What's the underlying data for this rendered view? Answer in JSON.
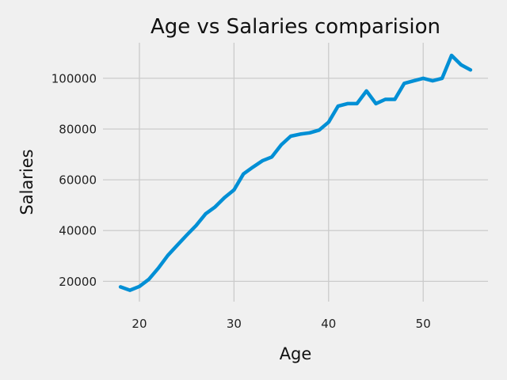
{
  "chart_data": {
    "type": "line",
    "title": "Age vs Salaries comparision",
    "xlabel": "Age",
    "ylabel": "Salaries",
    "xlim": [
      16.15,
      56.85
    ],
    "ylim": [
      12000,
      114000
    ],
    "xticks": [
      20,
      30,
      40,
      50
    ],
    "yticks": [
      20000,
      40000,
      60000,
      80000,
      100000
    ],
    "grid": true,
    "legend": "none",
    "colors": {
      "background": "#f0f0f0",
      "series": "#008fd5",
      "grid": "#cbcbcb"
    },
    "series": [
      {
        "color": "#008fd5",
        "x": [
          18,
          19,
          20,
          21,
          22,
          23,
          24,
          25,
          26,
          27,
          28,
          29,
          30,
          31,
          32,
          33,
          34,
          35,
          36,
          37,
          38,
          39,
          40,
          41,
          42,
          43,
          44,
          45,
          46,
          47,
          48,
          49,
          50,
          51,
          52,
          53,
          54,
          55
        ],
        "y": [
          17800,
          16500,
          18000,
          20800,
          25200,
          30200,
          34200,
          38200,
          42000,
          46600,
          49300,
          53000,
          56000,
          62300,
          65000,
          67500,
          69000,
          73800,
          77200,
          78000,
          78500,
          79600,
          82700,
          89000,
          90000,
          90000,
          95000,
          90000,
          91700,
          91700,
          98000,
          99000,
          100000,
          99000,
          100000,
          109000,
          105300,
          103300
        ]
      }
    ]
  }
}
